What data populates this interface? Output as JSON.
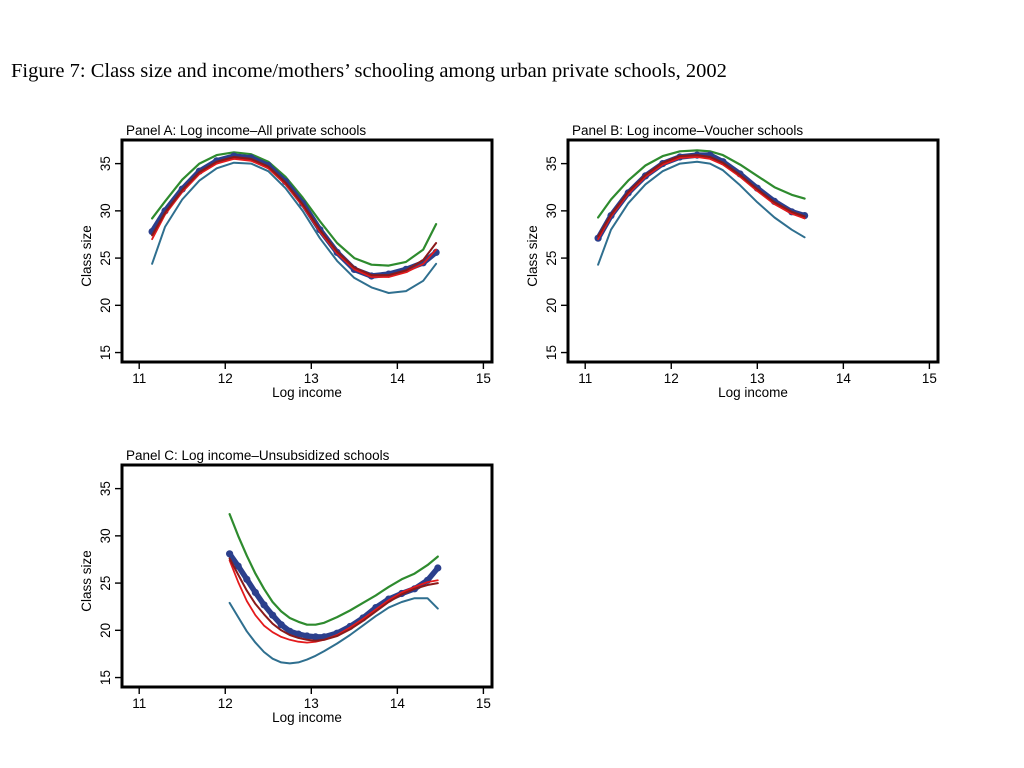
{
  "figure_title": "Figure 7:  Class size and income/mothers’ schooling among urban private schools, 2002",
  "colors": {
    "fit": "#8b1a1a",
    "local_mean": "#e41a1c",
    "ci_bound": "#2e8b2e",
    "ci_lower": "#2f6f8f",
    "markers": "#2b3f8c"
  },
  "chart_data": [
    {
      "type": "line",
      "title": "Panel A: Log income–All private schools",
      "xlabel": "Log income",
      "ylabel": "Class size",
      "xlim": [
        10.8,
        15.1
      ],
      "ylim": [
        14,
        37.5
      ],
      "xticks": [
        11,
        12,
        13,
        14,
        15
      ],
      "yticks": [
        15,
        20,
        25,
        30,
        35
      ],
      "grid": false,
      "series": [
        {
          "role": "markers",
          "x": [
            11.15,
            11.3,
            11.5,
            11.7,
            11.9,
            12.1,
            12.3,
            12.5,
            12.7,
            12.9,
            13.1,
            13.3,
            13.5,
            13.7,
            13.9,
            14.1,
            14.3,
            14.45
          ],
          "y": [
            27.8,
            30.0,
            32.3,
            34.2,
            35.3,
            35.8,
            35.6,
            34.8,
            33.1,
            30.8,
            28.0,
            25.6,
            23.8,
            23.1,
            23.3,
            23.8,
            24.5,
            25.6
          ]
        },
        {
          "role": "fit",
          "x": [
            11.15,
            11.3,
            11.5,
            11.7,
            11.9,
            12.1,
            12.3,
            12.5,
            12.7,
            12.9,
            13.1,
            13.3,
            13.5,
            13.7,
            13.9,
            14.1,
            14.3,
            14.45
          ],
          "y": [
            27.4,
            29.8,
            32.2,
            34.1,
            35.2,
            35.7,
            35.5,
            34.7,
            33.0,
            30.7,
            28.0,
            25.7,
            24.0,
            23.2,
            23.2,
            23.7,
            24.8,
            26.6
          ]
        },
        {
          "role": "local_mean",
          "x": [
            11.15,
            11.3,
            11.5,
            11.7,
            11.9,
            12.1,
            12.3,
            12.5,
            12.7,
            12.9,
            13.1,
            13.3,
            13.5,
            13.7,
            13.9,
            14.1,
            14.3,
            14.45
          ],
          "y": [
            27.0,
            29.6,
            32.0,
            33.9,
            35.0,
            35.5,
            35.3,
            34.5,
            32.8,
            30.5,
            27.8,
            25.5,
            23.8,
            23.0,
            23.0,
            23.5,
            24.4,
            25.9
          ]
        },
        {
          "role": "ci_bound",
          "x": [
            11.15,
            11.3,
            11.5,
            11.7,
            11.9,
            12.1,
            12.3,
            12.5,
            12.7,
            12.9,
            13.1,
            13.3,
            13.5,
            13.7,
            13.9,
            14.1,
            14.3,
            14.45
          ],
          "y": [
            29.2,
            31.0,
            33.3,
            35.0,
            35.9,
            36.2,
            36.0,
            35.2,
            33.6,
            31.4,
            28.9,
            26.6,
            25.0,
            24.3,
            24.2,
            24.6,
            25.9,
            28.6
          ]
        },
        {
          "role": "ci_lower",
          "x": [
            11.15,
            11.3,
            11.5,
            11.7,
            11.9,
            12.1,
            12.3,
            12.5,
            12.7,
            12.9,
            13.1,
            13.3,
            13.5,
            13.7,
            13.9,
            14.1,
            14.3,
            14.45
          ],
          "y": [
            24.4,
            28.3,
            31.2,
            33.2,
            34.5,
            35.1,
            35.0,
            34.2,
            32.4,
            30.0,
            27.1,
            24.7,
            22.9,
            21.9,
            21.3,
            21.5,
            22.6,
            24.4
          ]
        }
      ]
    },
    {
      "type": "line",
      "title": "Panel B: Log income–Voucher schools",
      "xlabel": "Log income",
      "ylabel": "Class size",
      "xlim": [
        10.8,
        15.1
      ],
      "ylim": [
        14,
        37.5
      ],
      "xticks": [
        11,
        12,
        13,
        14,
        15
      ],
      "yticks": [
        15,
        20,
        25,
        30,
        35
      ],
      "grid": false,
      "series": [
        {
          "role": "markers",
          "x": [
            11.15,
            11.3,
            11.5,
            11.7,
            11.9,
            12.1,
            12.3,
            12.45,
            12.6,
            12.8,
            13.0,
            13.2,
            13.4,
            13.55
          ],
          "y": [
            27.1,
            29.5,
            31.9,
            33.7,
            35.0,
            35.7,
            35.9,
            35.9,
            35.2,
            33.9,
            32.4,
            31.0,
            29.9,
            29.5
          ]
        },
        {
          "role": "fit",
          "x": [
            11.15,
            11.3,
            11.5,
            11.7,
            11.9,
            12.1,
            12.3,
            12.45,
            12.6,
            12.8,
            13.0,
            13.2,
            13.4,
            13.55
          ],
          "y": [
            27.3,
            29.6,
            32.0,
            33.8,
            35.1,
            35.8,
            35.9,
            35.7,
            35.1,
            33.8,
            32.3,
            30.9,
            29.9,
            29.4
          ]
        },
        {
          "role": "local_mean",
          "x": [
            11.15,
            11.3,
            11.5,
            11.7,
            11.9,
            12.1,
            12.3,
            12.45,
            12.6,
            12.8,
            13.0,
            13.2,
            13.4,
            13.55
          ],
          "y": [
            27.0,
            29.4,
            31.8,
            33.6,
            34.9,
            35.6,
            35.7,
            35.5,
            34.9,
            33.6,
            32.1,
            30.7,
            29.7,
            29.2
          ]
        },
        {
          "role": "ci_bound",
          "x": [
            11.15,
            11.3,
            11.5,
            11.7,
            11.9,
            12.1,
            12.3,
            12.45,
            12.6,
            12.8,
            13.0,
            13.2,
            13.4,
            13.55
          ],
          "y": [
            29.3,
            31.2,
            33.2,
            34.8,
            35.8,
            36.3,
            36.4,
            36.3,
            35.9,
            34.9,
            33.7,
            32.5,
            31.7,
            31.3
          ]
        },
        {
          "role": "ci_lower",
          "x": [
            11.15,
            11.3,
            11.5,
            11.7,
            11.9,
            12.1,
            12.3,
            12.45,
            12.6,
            12.8,
            13.0,
            13.2,
            13.4,
            13.55
          ],
          "y": [
            24.3,
            28.0,
            30.8,
            32.8,
            34.2,
            35.0,
            35.2,
            35.0,
            34.3,
            32.7,
            30.9,
            29.3,
            28.0,
            27.2
          ]
        }
      ]
    },
    {
      "type": "line",
      "title": "Panel C: Log income–Unsubsidized schools",
      "xlabel": "Log income",
      "ylabel": "Class size",
      "xlim": [
        10.8,
        15.1
      ],
      "ylim": [
        14,
        37.5
      ],
      "xticks": [
        11,
        12,
        13,
        14,
        15
      ],
      "yticks": [
        15,
        20,
        25,
        30,
        35
      ],
      "grid": false,
      "series": [
        {
          "role": "markers",
          "x": [
            12.05,
            12.15,
            12.25,
            12.35,
            12.45,
            12.55,
            12.65,
            12.75,
            12.85,
            12.95,
            13.05,
            13.15,
            13.3,
            13.45,
            13.6,
            13.75,
            13.9,
            14.05,
            14.2,
            14.35,
            14.47
          ],
          "y": [
            28.1,
            26.8,
            25.4,
            24.0,
            22.7,
            21.6,
            20.6,
            19.9,
            19.6,
            19.4,
            19.3,
            19.3,
            19.7,
            20.4,
            21.3,
            22.4,
            23.3,
            23.9,
            24.4,
            25.3,
            26.6
          ]
        },
        {
          "role": "fit",
          "x": [
            12.05,
            12.15,
            12.25,
            12.35,
            12.45,
            12.55,
            12.65,
            12.75,
            12.85,
            12.95,
            13.05,
            13.15,
            13.3,
            13.45,
            13.6,
            13.75,
            13.9,
            14.05,
            14.2,
            14.35,
            14.47
          ],
          "y": [
            27.6,
            25.9,
            24.2,
            22.8,
            21.7,
            20.7,
            20.0,
            19.5,
            19.2,
            19.0,
            18.9,
            19.0,
            19.4,
            20.1,
            21.0,
            22.0,
            23.0,
            23.8,
            24.4,
            24.8,
            25.0
          ]
        },
        {
          "role": "local_mean",
          "x": [
            12.05,
            12.15,
            12.25,
            12.35,
            12.45,
            12.55,
            12.65,
            12.75,
            12.85,
            12.95,
            13.05,
            13.15,
            13.3,
            13.45,
            13.6,
            13.75,
            13.9,
            14.05,
            14.2,
            14.35,
            14.47
          ],
          "y": [
            27.4,
            25.1,
            23.1,
            21.6,
            20.5,
            19.8,
            19.3,
            19.0,
            18.8,
            18.7,
            18.8,
            19.0,
            19.5,
            20.3,
            21.2,
            22.2,
            23.2,
            24.0,
            24.6,
            25.1,
            25.3
          ]
        },
        {
          "role": "ci_bound",
          "x": [
            12.05,
            12.15,
            12.25,
            12.35,
            12.45,
            12.55,
            12.65,
            12.75,
            12.85,
            12.95,
            13.05,
            13.15,
            13.3,
            13.45,
            13.6,
            13.75,
            13.9,
            14.05,
            14.2,
            14.35,
            14.47
          ],
          "y": [
            32.3,
            30.0,
            27.9,
            26.0,
            24.4,
            23.0,
            22.0,
            21.3,
            20.9,
            20.6,
            20.6,
            20.8,
            21.4,
            22.1,
            22.9,
            23.7,
            24.6,
            25.4,
            26.0,
            26.9,
            27.8
          ]
        },
        {
          "role": "ci_lower",
          "x": [
            12.05,
            12.15,
            12.25,
            12.35,
            12.45,
            12.55,
            12.65,
            12.75,
            12.85,
            12.95,
            13.05,
            13.15,
            13.3,
            13.45,
            13.6,
            13.75,
            13.9,
            14.05,
            14.2,
            14.35,
            14.47
          ],
          "y": [
            22.9,
            21.4,
            19.9,
            18.7,
            17.7,
            17.0,
            16.6,
            16.5,
            16.6,
            16.9,
            17.3,
            17.8,
            18.6,
            19.5,
            20.5,
            21.5,
            22.4,
            23.0,
            23.4,
            23.4,
            22.3
          ]
        }
      ]
    }
  ]
}
